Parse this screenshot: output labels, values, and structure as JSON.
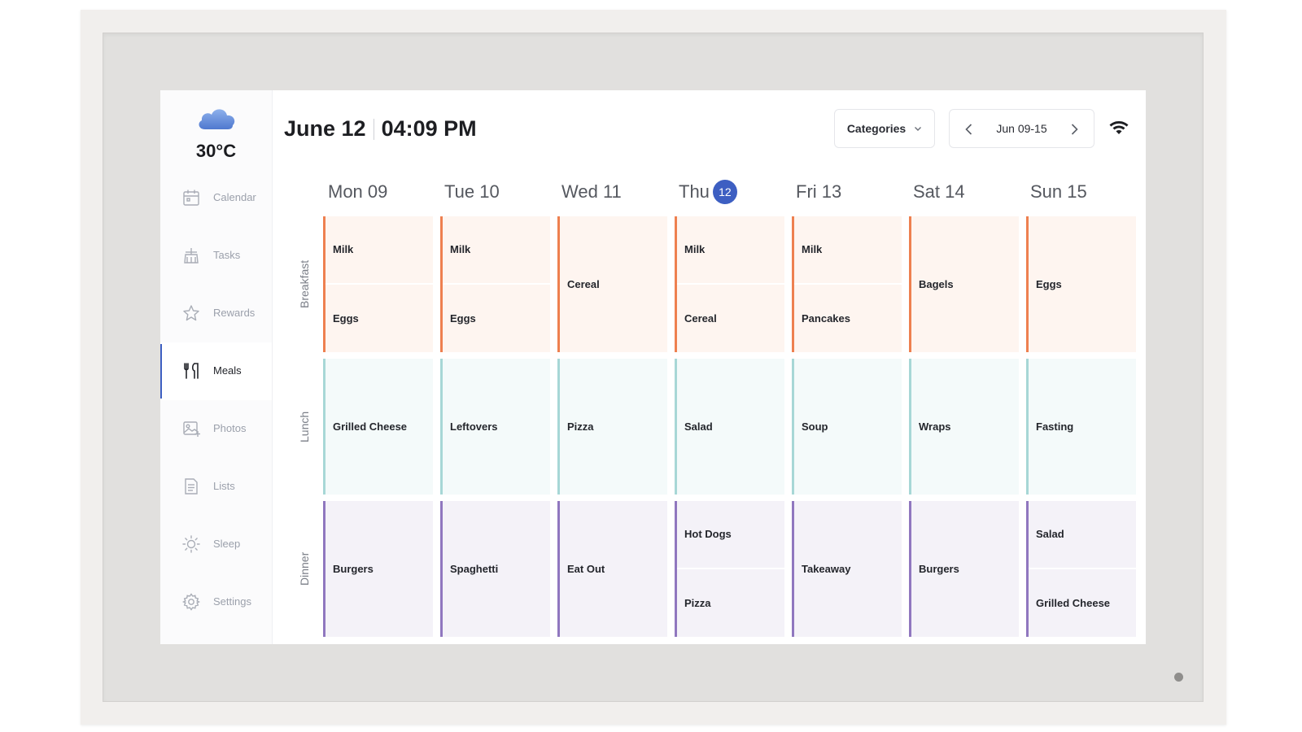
{
  "weather": {
    "temperature": "30°C",
    "icon": "cloud-icon"
  },
  "sidebar": {
    "items": [
      {
        "label": "Calendar",
        "icon": "calendar-icon",
        "active": false
      },
      {
        "label": "Tasks",
        "icon": "tasks-icon",
        "active": false
      },
      {
        "label": "Rewards",
        "icon": "star-icon",
        "active": false
      },
      {
        "label": "Meals",
        "icon": "utensils-icon",
        "active": true
      },
      {
        "label": "Photos",
        "icon": "photo-icon",
        "active": false
      },
      {
        "label": "Lists",
        "icon": "list-icon",
        "active": false
      },
      {
        "label": "Sleep",
        "icon": "sun-icon",
        "active": false
      },
      {
        "label": "Settings",
        "icon": "gear-icon",
        "active": false
      }
    ]
  },
  "header": {
    "date": "June 12",
    "time": "04:09 PM",
    "categories_label": "Categories",
    "week_range": "Jun 09-15"
  },
  "days": [
    {
      "name": "Mon 09",
      "label": "Mon 09",
      "today": false
    },
    {
      "name": "Tue 10",
      "label": "Tue 10",
      "today": false
    },
    {
      "name": "Wed 11",
      "label": "Wed 11",
      "today": false
    },
    {
      "name": "Thu",
      "label": "Thu",
      "today": true,
      "badge": "12"
    },
    {
      "name": "Fri 13",
      "label": "Fri 13",
      "today": false
    },
    {
      "name": "Sat 14",
      "label": "Sat 14",
      "today": false
    },
    {
      "name": "Sun 15",
      "label": "Sun 15",
      "today": false
    }
  ],
  "meal_types": [
    {
      "key": "breakfast",
      "label": "Breakfast"
    },
    {
      "key": "lunch",
      "label": "Lunch"
    },
    {
      "key": "dinner",
      "label": "Dinner"
    }
  ],
  "colors": {
    "accent": "#3d5fc2",
    "breakfast": "#ee8050",
    "lunch": "#a7d7d6",
    "dinner": "#9077bf"
  },
  "meals": {
    "breakfast": [
      [
        "Milk",
        "Eggs"
      ],
      [
        "Milk",
        "Eggs"
      ],
      [
        "Cereal"
      ],
      [
        "Milk",
        "Cereal"
      ],
      [
        "Milk",
        "Pancakes"
      ],
      [
        "Bagels"
      ],
      [
        "Eggs"
      ]
    ],
    "lunch": [
      [
        "Grilled Cheese"
      ],
      [
        "Leftovers"
      ],
      [
        "Pizza"
      ],
      [
        "Salad"
      ],
      [
        "Soup"
      ],
      [
        "Wraps"
      ],
      [
        "Fasting"
      ]
    ],
    "dinner": [
      [
        "Burgers"
      ],
      [
        "Spaghetti"
      ],
      [
        "Eat Out"
      ],
      [
        "Hot Dogs",
        "Pizza"
      ],
      [
        "Takeaway"
      ],
      [
        "Burgers"
      ],
      [
        "Salad",
        "Grilled Cheese"
      ]
    ]
  }
}
